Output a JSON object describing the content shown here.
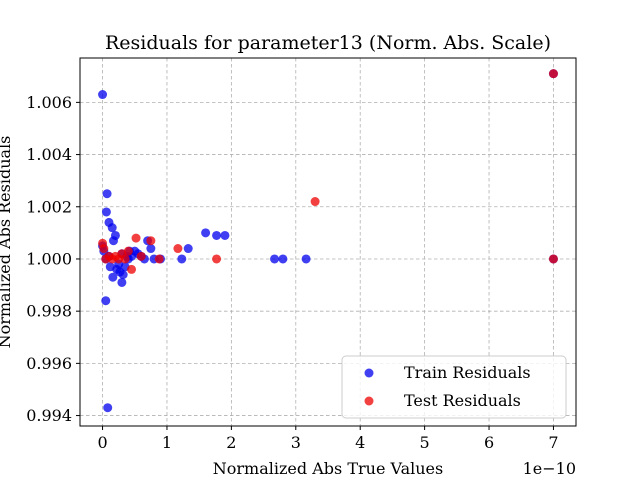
{
  "chart_data": {
    "type": "scatter",
    "title": "Residuals for parameter13 (Norm. Abs. Scale)",
    "xlabel": "Normalized Abs True Values",
    "ylabel": "Normalized Abs Residuals",
    "x_offset_label": "1e−10",
    "xlim": [
      -0.35,
      7.35
    ],
    "ylim": [
      0.9936,
      1.0077
    ],
    "x_ticks": [
      0,
      1,
      2,
      3,
      4,
      5,
      6,
      7
    ],
    "x_tick_labels": [
      "0",
      "1",
      "2",
      "3",
      "4",
      "5",
      "6",
      "7"
    ],
    "y_ticks": [
      0.994,
      0.996,
      0.998,
      1.0,
      1.002,
      1.004,
      1.006
    ],
    "y_tick_labels": [
      "0.994",
      "0.996",
      "0.998",
      "1.000",
      "1.002",
      "1.004",
      "1.006"
    ],
    "grid": true,
    "legend_position": "lower-right",
    "series": [
      {
        "name": "Train Residuals",
        "color": "#0000ee",
        "points": [
          [
            0.0,
            1.0063
          ],
          [
            0.05,
            0.9984
          ],
          [
            0.07,
            1.0025
          ],
          [
            0.06,
            1.0018
          ],
          [
            0.1,
            1.0014
          ],
          [
            0.15,
            1.0012
          ],
          [
            0.08,
            0.9943
          ],
          [
            0.2,
            1.0009
          ],
          [
            0.17,
            1.0007
          ],
          [
            0.12,
            0.9997
          ],
          [
            0.16,
            0.9993
          ],
          [
            0.22,
            0.9996
          ],
          [
            0.27,
            0.9995
          ],
          [
            0.3,
            0.9991
          ],
          [
            0.32,
            0.9994
          ],
          [
            0.25,
            0.9998
          ],
          [
            0.35,
            0.9997
          ],
          [
            0.4,
            1.0
          ],
          [
            0.45,
            1.0001
          ],
          [
            0.5,
            1.0003
          ],
          [
            0.55,
            1.0002
          ],
          [
            0.6,
            1.0001
          ],
          [
            0.65,
            1.0
          ],
          [
            0.7,
            1.0007
          ],
          [
            0.75,
            1.0004
          ],
          [
            0.8,
            1.0
          ],
          [
            0.9,
            1.0
          ],
          [
            0.0,
            1.0005
          ],
          [
            0.02,
            1.0003
          ],
          [
            0.05,
            1.0
          ],
          [
            0.1,
            1.0001
          ],
          [
            0.3,
            1.0002
          ],
          [
            0.38,
            1.0001
          ],
          [
            0.42,
            1.0003
          ],
          [
            1.23,
            1.0
          ],
          [
            1.33,
            1.0004
          ],
          [
            1.6,
            1.001
          ],
          [
            1.77,
            1.0009
          ],
          [
            1.9,
            1.0009
          ],
          [
            2.67,
            1.0
          ],
          [
            2.8,
            1.0
          ],
          [
            3.16,
            1.0
          ],
          [
            7.0,
            1.0071
          ],
          [
            7.0,
            1.0
          ]
        ]
      },
      {
        "name": "Test Residuals",
        "color": "#ee0000",
        "points": [
          [
            0.0,
            1.0006
          ],
          [
            0.02,
            1.0004
          ],
          [
            0.05,
            1.0
          ],
          [
            0.1,
            1.0001
          ],
          [
            0.15,
            1.0
          ],
          [
            0.2,
            1.0001
          ],
          [
            0.25,
            1.0
          ],
          [
            0.3,
            1.0002
          ],
          [
            0.35,
            1.0
          ],
          [
            0.4,
            1.0003
          ],
          [
            0.45,
            0.9996
          ],
          [
            0.52,
            1.0008
          ],
          [
            0.6,
            1.0001
          ],
          [
            0.75,
            1.0007
          ],
          [
            0.88,
            1.0
          ],
          [
            1.17,
            1.0004
          ],
          [
            1.77,
            1.0
          ],
          [
            3.3,
            1.0022
          ],
          [
            7.0,
            1.0071
          ],
          [
            7.0,
            1.0
          ]
        ]
      }
    ]
  }
}
